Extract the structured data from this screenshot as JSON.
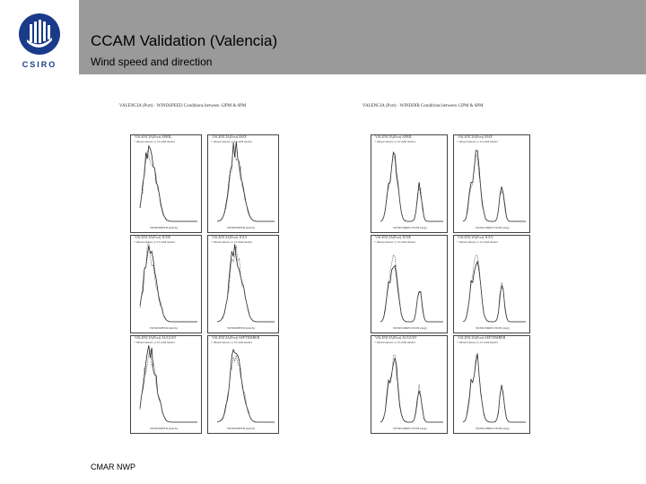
{
  "slide": {
    "title": "CCAM Validation (Valencia)",
    "subtitle": "Wind speed and direction",
    "footer": "CMAR NWP",
    "logo_text": "CSIRO"
  },
  "figures": {
    "left_title": "VALENCIA (Port) · WINDSPEED Conditions between 12PM & 6PM",
    "right_title": "VALENCIA (Port) · WINDDIR Conditions between 12PM & 6PM",
    "legend_obs": "Observations",
    "legend_model": "CCAM model",
    "left_panels": [
      "VALENCIA(Port) APRIL",
      "VALENCIA(Port) MAY",
      "VALENCIA(Port) JUNE",
      "VALENCIA(Port) JULY",
      "VALENCIA(Port) AUGUST",
      "VALENCIA(Port) SEPTEMBER"
    ],
    "right_panels": [
      "VALENCIA(Port) APRIL",
      "VALENCIA(Port) MAY",
      "VALENCIA(Port) JUNE",
      "VALENCIA(Port) JULY",
      "VALENCIA(Port) AUGUST",
      "VALENCIA(Port) SEPTEMBER"
    ],
    "left_xlabel": "WINDSPEED (km/h)",
    "right_xlabel": "WIND DIRECTION (deg)"
  },
  "colors": {
    "title_bar": "#9a9a9a",
    "logo": "#1a3a8a"
  }
}
